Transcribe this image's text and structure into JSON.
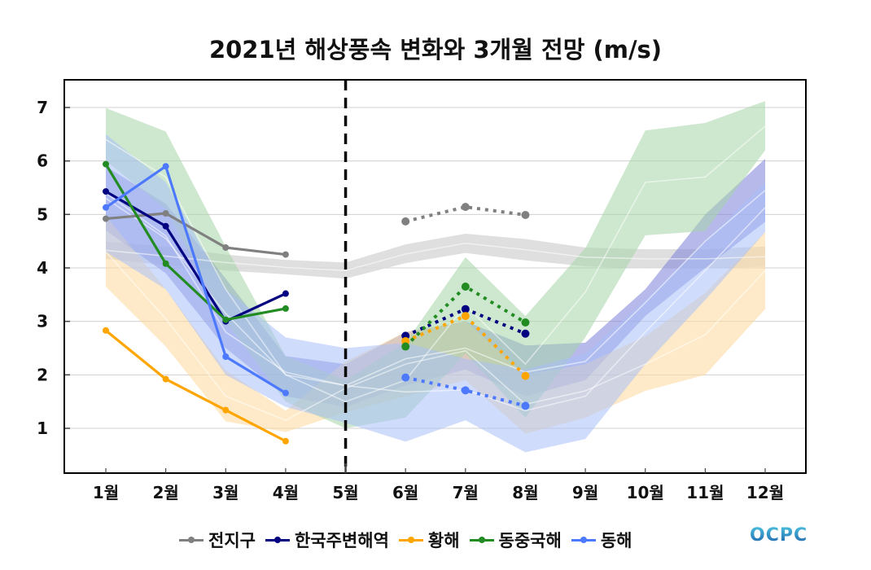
{
  "chart_data": {
    "type": "line",
    "title": "2021년 해상풍속 변화와 3개월 전망 (m/s)",
    "xlabel": "",
    "ylabel": "",
    "categories": [
      "1월",
      "2월",
      "3월",
      "4월",
      "5월",
      "6월",
      "7월",
      "8월",
      "9월",
      "10월",
      "11월",
      "12월"
    ],
    "ylim": [
      0.2,
      7.5
    ],
    "yticks": [
      1,
      2,
      3,
      4,
      5,
      6,
      7
    ],
    "grid": true,
    "divider_after_category": "5월",
    "legend_position": "bottom",
    "series": [
      {
        "name": "전지구",
        "color": "#808080",
        "band_color": "#d9d9d9",
        "observed": [
          4.92,
          5.02,
          4.38,
          4.25,
          null,
          null,
          null,
          null,
          null,
          null,
          null,
          null
        ],
        "forecast": [
          null,
          null,
          null,
          null,
          null,
          4.87,
          5.14,
          4.99,
          null,
          null,
          null,
          null
        ],
        "climatology_upper": [
          4.49,
          4.4,
          4.25,
          4.15,
          4.1,
          4.44,
          4.64,
          4.54,
          4.38,
          4.35,
          4.35,
          4.4
        ],
        "climatology_lower": [
          4.17,
          4.05,
          3.95,
          3.88,
          3.8,
          4.09,
          4.28,
          4.14,
          4.03,
          3.99,
          4.0,
          4.02
        ],
        "climatology_mean": [
          4.33,
          4.22,
          4.1,
          4.01,
          3.95,
          4.26,
          4.46,
          4.34,
          4.2,
          4.17,
          4.17,
          4.21
        ]
      },
      {
        "name": "한국주변해역",
        "color": "#000080",
        "band_color": "#7b80d8",
        "observed": [
          5.43,
          4.78,
          3.0,
          3.52,
          null,
          null,
          null,
          null,
          null,
          null,
          null,
          null
        ],
        "forecast": [
          null,
          null,
          null,
          null,
          null,
          2.73,
          3.23,
          2.77,
          null,
          null,
          null,
          null
        ],
        "climatology_upper": [
          5.9,
          5.2,
          3.8,
          2.35,
          2.2,
          2.8,
          3.0,
          2.55,
          2.6,
          3.6,
          5.0,
          6.04
        ],
        "climatology_lower": [
          4.7,
          3.9,
          2.5,
          1.6,
          1.4,
          1.8,
          2.1,
          1.6,
          1.9,
          3.1,
          4.0,
          4.86
        ],
        "climatology_mean": [
          5.3,
          4.55,
          3.15,
          2.0,
          1.8,
          2.3,
          2.5,
          2.05,
          2.25,
          3.35,
          4.5,
          5.45
        ]
      },
      {
        "name": "황해",
        "color": "#ffa500",
        "band_color": "#fdd99a",
        "observed": [
          2.83,
          1.92,
          1.34,
          0.76,
          null,
          null,
          null,
          null,
          null,
          null,
          null,
          null
        ],
        "forecast": [
          null,
          null,
          null,
          null,
          null,
          2.63,
          3.1,
          1.98,
          null,
          null,
          null,
          null
        ],
        "climatology_upper": [
          4.97,
          3.6,
          2.08,
          1.33,
          2.25,
          2.8,
          3.0,
          2.0,
          2.2,
          2.72,
          3.53,
          4.67
        ],
        "climatology_lower": [
          3.65,
          2.53,
          1.13,
          0.93,
          1.3,
          1.6,
          1.9,
          0.9,
          1.2,
          1.7,
          2.0,
          3.23
        ],
        "climatology_mean": [
          4.3,
          3.05,
          1.6,
          1.15,
          1.75,
          2.2,
          2.45,
          1.45,
          1.7,
          2.2,
          2.75,
          3.95
        ]
      },
      {
        "name": "동중국해",
        "color": "#228b22",
        "band_color": "#a5d6a7",
        "observed": [
          5.94,
          4.08,
          3.03,
          3.24,
          null,
          null,
          null,
          null,
          null,
          null,
          null,
          null
        ],
        "forecast": [
          null,
          null,
          null,
          null,
          null,
          2.53,
          3.65,
          2.98,
          null,
          null,
          null,
          null
        ],
        "climatology_upper": [
          6.99,
          6.55,
          4.4,
          2.35,
          1.9,
          2.6,
          4.2,
          3.1,
          4.37,
          6.57,
          6.71,
          7.12
        ],
        "climatology_lower": [
          6.0,
          5.1,
          3.0,
          1.5,
          1.0,
          1.2,
          2.4,
          1.2,
          2.7,
          4.61,
          4.69,
          6.2
        ],
        "climatology_mean": [
          6.4,
          5.7,
          3.6,
          2.0,
          1.5,
          1.9,
          3.3,
          2.2,
          3.55,
          5.6,
          5.7,
          6.65
        ]
      },
      {
        "name": "동해",
        "color": "#4d79ff",
        "band_color": "#a9bff7",
        "observed": [
          5.13,
          5.9,
          2.34,
          1.66,
          null,
          null,
          null,
          null,
          null,
          null,
          null,
          null
        ],
        "forecast": [
          null,
          null,
          null,
          null,
          null,
          1.95,
          1.71,
          1.42,
          null,
          null,
          null,
          null
        ],
        "climatology_upper": [
          6.5,
          5.6,
          3.6,
          2.7,
          2.5,
          2.6,
          2.3,
          2.1,
          2.4,
          3.4,
          4.5,
          5.59
        ],
        "climatology_lower": [
          4.3,
          3.6,
          2.0,
          1.4,
          1.1,
          0.75,
          1.15,
          0.55,
          0.8,
          2.2,
          3.4,
          4.67
        ],
        "climatology_mean": [
          5.4,
          4.6,
          2.8,
          2.05,
          1.8,
          1.68,
          1.72,
          1.33,
          1.6,
          2.8,
          3.95,
          5.13
        ]
      }
    ]
  },
  "logo_text": "OCPC"
}
